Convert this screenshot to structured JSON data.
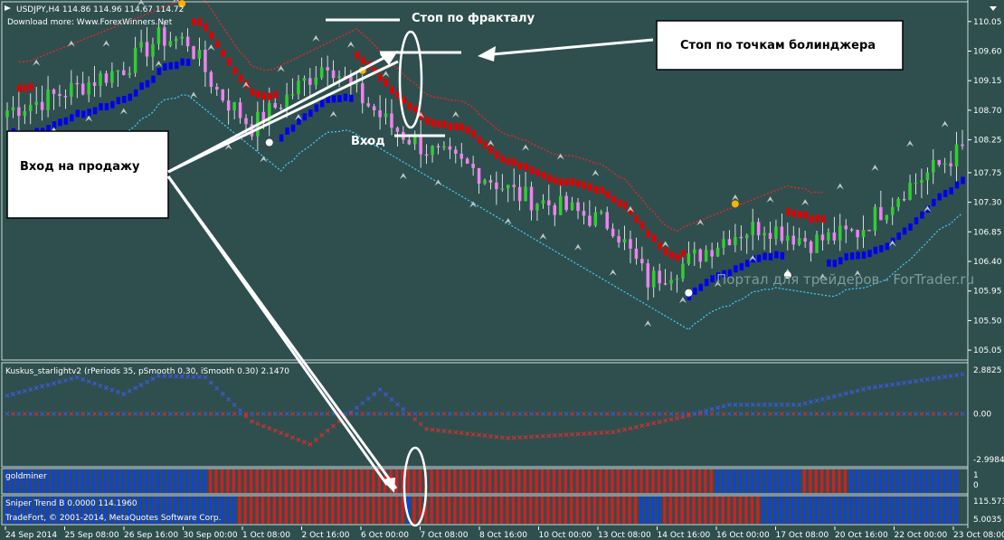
{
  "window": {
    "symbol_line": "USDJPY,H4  114.86 114.96 114.67 114.72",
    "download_line": "Download more: Www.ForexWinners.Net",
    "watermark": "Портал для трейдеров - ForTrader.ru"
  },
  "annotations": {
    "fractal_stop": "Стоп по фракталу",
    "bollinger_stop": "Стоп по точкам болинджера",
    "entry_sell": "Вход на продажу",
    "entry": "Вход"
  },
  "panels": {
    "kuskus": {
      "title": "Kuskus_starlightv2  (rPeriods 35, pSmooth 0.30, iSmooth 0.30)  2.1470",
      "ticks": [
        "2.8825",
        "0.00",
        "-2.9984"
      ]
    },
    "goldminer": {
      "title": "goldminer",
      "ticks": [
        "1",
        "0"
      ]
    },
    "sniper": {
      "title": "Sniper Trend B 0.0000 114.1960",
      "ticks": [
        "115.5735",
        "5.0035"
      ]
    },
    "copyright": "TradeFort, © 2001-2014, MetaQuotes Software Corp."
  },
  "colors": {
    "background": "#2f4f4f",
    "bull": "#32cd32",
    "bear": "#ee82ee",
    "red_band": "#e00000",
    "blue_band": "#0000ee",
    "cyan_line": "#40d0ff",
    "dot_orange": "#ffb000",
    "kuskus_blue": "#3c5ad8",
    "kuskus_red": "#d03030"
  },
  "chart_data": [
    {
      "type": "candlestick",
      "title": "USDJPY,H4",
      "ylim": [
        104.9,
        110.35
      ],
      "y_ticks": [
        "110.05",
        "109.60",
        "109.15",
        "108.70",
        "108.25",
        "107.75",
        "107.30",
        "106.85",
        "106.40",
        "105.95",
        "105.50",
        "105.05"
      ],
      "x_ticks": [
        "24 Sep 2014",
        "25 Sep 08:00",
        "26 Sep 16:00",
        "30 Sep 00:00",
        "1 Oct 08:00",
        "2 Oct 16:00",
        "6 Oct 00:00",
        "7 Oct 08:00",
        "8 Oct 16:00",
        "10 Oct 00:00",
        "13 Oct 08:00",
        "14 Oct 16:00",
        "16 Oct 00:00",
        "17 Oct 08:00",
        "20 Oct 16:00",
        "22 Oct 00:00",
        "23 Oct 08:00"
      ],
      "price_path": [
        [
          0,
          108.7
        ],
        [
          6,
          108.85
        ],
        [
          12,
          109.05
        ],
        [
          20,
          109.35
        ],
        [
          26,
          109.8
        ],
        [
          31,
          109.75
        ],
        [
          36,
          109.0
        ],
        [
          42,
          108.45
        ],
        [
          48,
          108.9
        ],
        [
          55,
          109.45
        ],
        [
          60,
          108.95
        ],
        [
          66,
          108.45
        ],
        [
          72,
          108.1
        ],
        [
          80,
          107.8
        ],
        [
          88,
          107.4
        ],
        [
          96,
          107.2
        ],
        [
          104,
          106.95
        ],
        [
          110,
          106.1
        ],
        [
          116,
          106.35
        ],
        [
          124,
          106.8
        ],
        [
          130,
          106.95
        ],
        [
          138,
          106.7
        ],
        [
          146,
          106.85
        ],
        [
          154,
          107.5
        ],
        [
          164,
          108.1
        ]
      ]
    },
    {
      "type": "scatter",
      "title": "Kuskus_starlightv2",
      "ylim": [
        -2.9984,
        2.8825
      ],
      "series": [
        {
          "name": "",
          "path": [
            [
              0,
              1.2
            ],
            [
              12,
              2.4
            ],
            [
              20,
              1.3
            ],
            [
              26,
              2.5
            ],
            [
              34,
              2.4
            ],
            [
              42,
              -0.5
            ],
            [
              52,
              -2.0
            ],
            [
              64,
              1.6
            ],
            [
              72,
              -1.0
            ],
            [
              86,
              -1.6
            ],
            [
              104,
              -1.2
            ],
            [
              116,
              -0.2
            ],
            [
              124,
              0.6
            ],
            [
              136,
              0.6
            ],
            [
              148,
              1.7
            ],
            [
              164,
              2.6
            ]
          ]
        },
        {
          "name": "",
          "path": [
            [
              0,
              0.0
            ],
            [
              164,
              0.0
            ]
          ]
        }
      ]
    },
    {
      "type": "heatmap",
      "title": "goldminer",
      "segments": [
        [
          0,
          35,
          "blue"
        ],
        [
          35,
          122,
          "red"
        ],
        [
          122,
          137,
          "blue"
        ],
        [
          137,
          145,
          "red"
        ],
        [
          145,
          164,
          "blue"
        ]
      ]
    },
    {
      "type": "heatmap",
      "title": "Sniper Trend B",
      "segments": [
        [
          0,
          40,
          "blue"
        ],
        [
          40,
          69,
          "red"
        ],
        [
          69,
          70,
          "blue"
        ],
        [
          70,
          109,
          "red"
        ],
        [
          109,
          113,
          "blue"
        ],
        [
          113,
          130,
          "red"
        ],
        [
          130,
          164,
          "blue"
        ]
      ]
    }
  ]
}
